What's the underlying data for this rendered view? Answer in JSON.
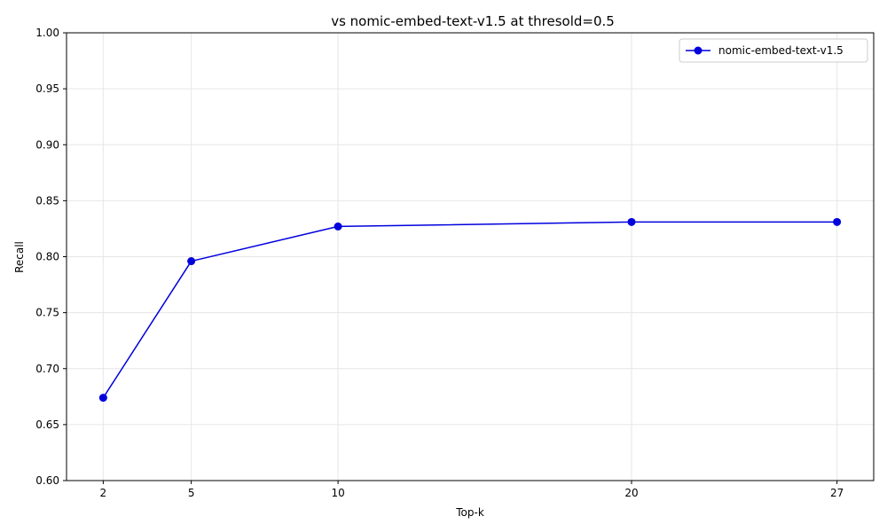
{
  "chart_data": {
    "type": "line",
    "title": "vs nomic-embed-text-v1.5 at thresold=0.5",
    "xlabel": "Top-k",
    "ylabel": "Recall",
    "x": [
      2,
      5,
      10,
      20,
      27
    ],
    "xticks": [
      "2",
      "5",
      "10",
      "20",
      "27"
    ],
    "yticks": [
      "0.60",
      "0.65",
      "0.70",
      "0.75",
      "0.80",
      "0.85",
      "0.90",
      "0.95",
      "1.00"
    ],
    "ylim": [
      0.6,
      1.0
    ],
    "grid": true,
    "legend_position": "top-right",
    "series": [
      {
        "name": "nomic-embed-text-v1.5",
        "color": "#0000dd",
        "marker": "circle",
        "values": [
          0.674,
          0.796,
          0.827,
          0.831,
          0.831
        ]
      }
    ]
  }
}
